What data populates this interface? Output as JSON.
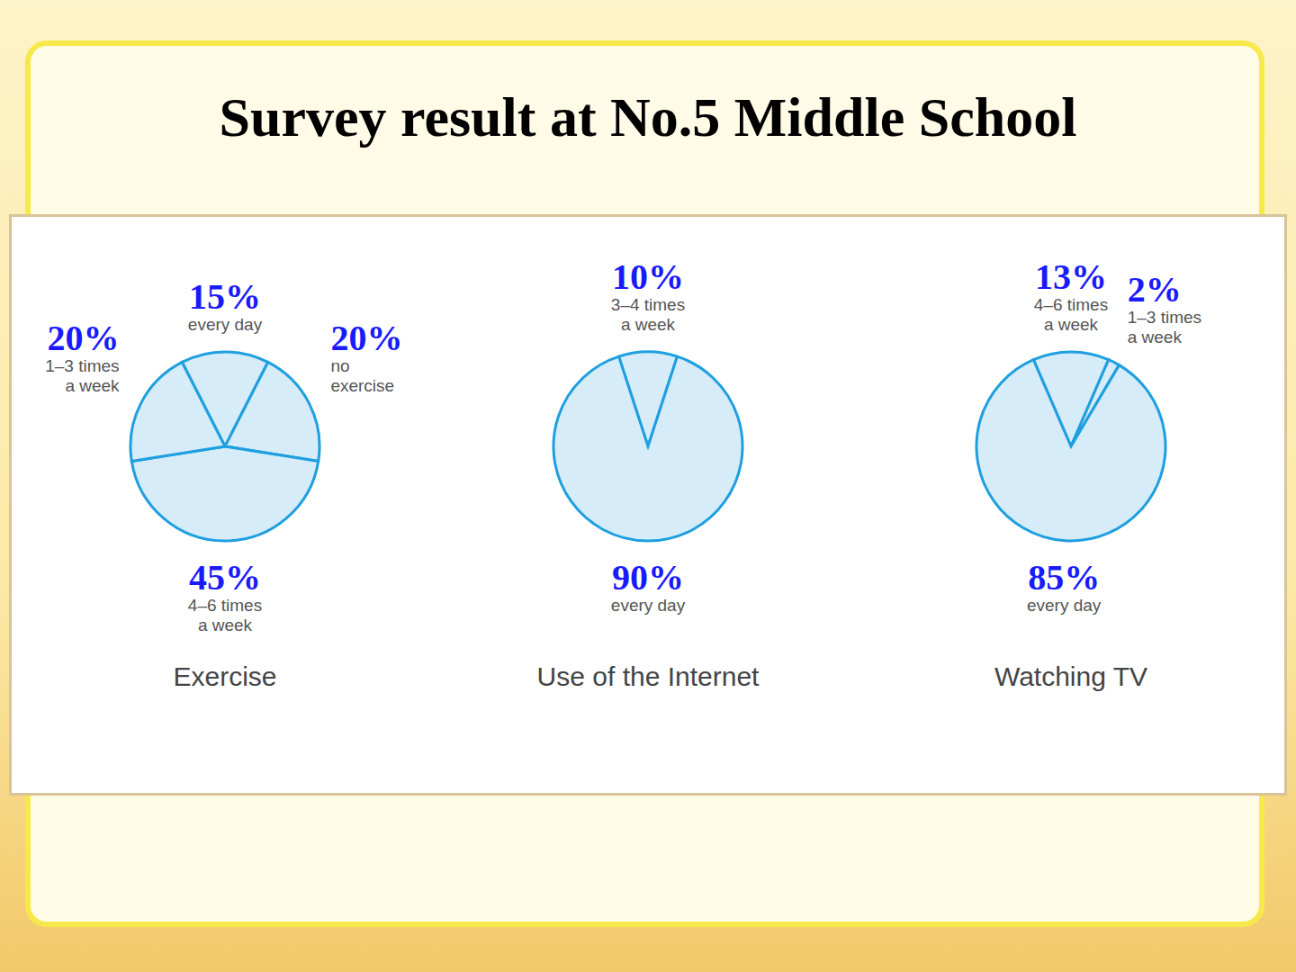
{
  "title": "Survey result at No.5 Middle School",
  "chart_data": [
    {
      "type": "pie",
      "title": "Exercise",
      "categories": [
        "every day",
        "no exercise",
        "4–6 times a week",
        "1–3 times a week"
      ],
      "values": [
        15,
        20,
        45,
        20
      ],
      "value_labels": [
        "15%",
        "20%",
        "45%",
        "20%"
      ],
      "color": "#d6ecf8",
      "data_labels": true
    },
    {
      "type": "pie",
      "title": "Use of the Internet",
      "categories": [
        "3–4 times a week",
        "every day"
      ],
      "values": [
        10,
        90
      ],
      "value_labels": [
        "10%",
        "90%"
      ],
      "color": "#d6ecf8",
      "data_labels": true
    },
    {
      "type": "pie",
      "title": "Watching TV",
      "categories": [
        "4–6 times a week",
        "1–3 times a week",
        "every day"
      ],
      "values": [
        13,
        2,
        85
      ],
      "value_labels": [
        "13%",
        "2%",
        "85%"
      ],
      "color": "#d6ecf8",
      "data_labels": true
    }
  ]
}
